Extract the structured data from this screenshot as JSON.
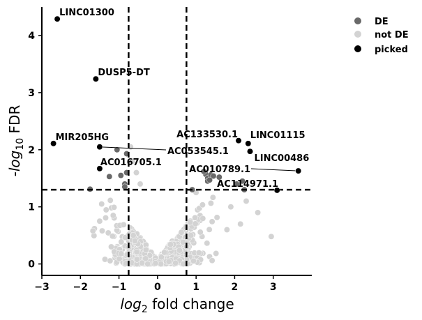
{
  "chart_data": {
    "type": "scatter",
    "xlabel_parts": [
      "log",
      "2",
      " fold change"
    ],
    "ylabel_parts": [
      "-log",
      "10",
      " FDR"
    ],
    "xlim": [
      -3,
      4.0
    ],
    "ylim": [
      -0.2,
      4.5
    ],
    "xticks": [
      -3,
      -2,
      -1,
      0,
      1,
      2,
      3
    ],
    "yticks": [
      0,
      1,
      2,
      3,
      4
    ],
    "x_tick_labels": [
      "−3",
      "−2",
      "−1",
      "0",
      "1",
      "2",
      "3"
    ],
    "y_tick_labels": [
      "0",
      "1",
      "2",
      "3",
      "4"
    ],
    "thresholds": {
      "fold_change": [
        -0.75,
        0.75
      ],
      "fdr_line": 1.3
    },
    "grid": false,
    "legend_position": "top-right, outside plot",
    "colors": {
      "de": "#696969",
      "not_de": "#d3d3d3",
      "picked": "#000000"
    },
    "legend": [
      {
        "key": "de",
        "label": "DE"
      },
      {
        "key": "not_de",
        "label": "not DE"
      },
      {
        "key": "picked",
        "label": "picked"
      }
    ],
    "picked": [
      {
        "label": "LINC01300",
        "x": -2.6,
        "y": 4.29
      },
      {
        "label": "DUSP5-DT",
        "x": -1.6,
        "y": 3.24
      },
      {
        "label": "MIR205HG",
        "x": -2.7,
        "y": 2.11
      },
      {
        "label": "AC053545.1",
        "x": -1.5,
        "y": 2.05
      },
      {
        "label": "AC016705.1",
        "x": -1.5,
        "y": 1.67
      },
      {
        "label": "AC133530.1",
        "x": 2.1,
        "y": 2.16
      },
      {
        "label": "LINC01115",
        "x": 2.35,
        "y": 2.11
      },
      {
        "label": "LINC00486",
        "x": 2.4,
        "y": 1.97
      },
      {
        "label": "AC010789.1",
        "x": 3.65,
        "y": 1.63
      },
      {
        "label": "AC114971.1",
        "x": 3.1,
        "y": 1.29
      }
    ],
    "de_points": [
      [
        -1.75,
        1.31
      ],
      [
        -1.25,
        1.53
      ],
      [
        -1.05,
        2.0
      ],
      [
        -0.8,
        1.93
      ],
      [
        -0.95,
        1.55
      ],
      [
        -0.85,
        1.4
      ],
      [
        -0.8,
        1.6
      ],
      [
        1.25,
        1.57
      ],
      [
        1.3,
        1.5
      ],
      [
        1.3,
        1.45
      ],
      [
        1.38,
        1.56
      ],
      [
        1.45,
        1.54
      ],
      [
        1.6,
        1.52
      ],
      [
        1.35,
        1.47
      ],
      [
        2.25,
        1.3
      ],
      [
        2.05,
        1.4
      ],
      [
        2.2,
        1.45
      ],
      [
        0.9,
        1.3
      ],
      [
        -0.85,
        1.35
      ],
      [
        1.2,
        1.62
      ]
    ],
    "not_de_summary": "approx. 600 genes, |log2FC| mostly < 1, -log10 FDR mostly < 1.3"
  }
}
